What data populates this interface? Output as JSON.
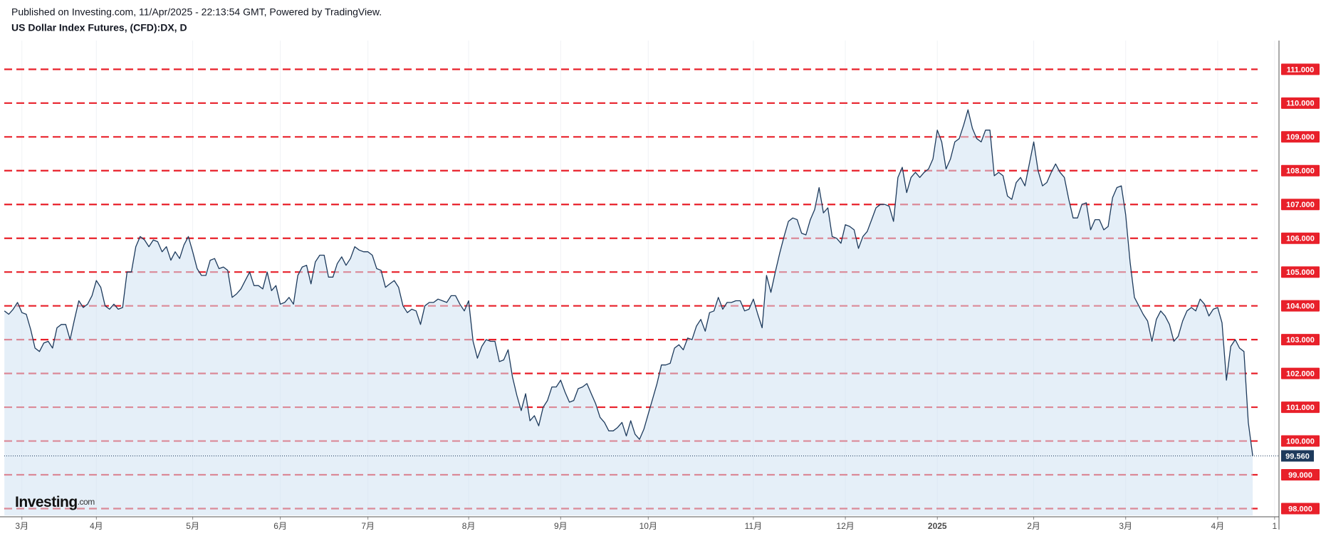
{
  "header": {
    "published": "Published on Investing.com, 11/Apr/2025 - 22:13:54 GMT, Powered by TradingView."
  },
  "chart_data": {
    "type": "area",
    "title": "US Dollar Index Futures, (CFD):DX, D",
    "color": "#1d3a5c",
    "fill": "#cfe1f3",
    "grid_color": "#e8202a",
    "values": [
      103.85,
      103.75,
      103.9,
      104.1,
      103.8,
      103.75,
      103.3,
      102.75,
      102.65,
      102.9,
      102.95,
      102.75,
      103.35,
      103.45,
      103.45,
      103.0,
      103.6,
      104.15,
      103.95,
      104.05,
      104.3,
      104.75,
      104.55,
      104.0,
      103.9,
      104.05,
      103.9,
      103.95,
      105.0,
      105.0,
      105.75,
      106.05,
      105.95,
      105.75,
      105.95,
      105.9,
      105.6,
      105.75,
      105.35,
      105.6,
      105.4,
      105.8,
      106.05,
      105.6,
      105.1,
      104.9,
      104.9,
      105.35,
      105.4,
      105.1,
      105.15,
      105.05,
      104.25,
      104.35,
      104.5,
      104.75,
      105.0,
      104.6,
      104.6,
      104.5,
      105.0,
      104.45,
      104.6,
      104.05,
      104.1,
      104.25,
      104.05,
      104.9,
      105.15,
      105.2,
      104.65,
      105.3,
      105.5,
      105.5,
      104.85,
      104.85,
      105.25,
      105.45,
      105.2,
      105.4,
      105.75,
      105.65,
      105.6,
      105.6,
      105.5,
      105.1,
      105.05,
      104.55,
      104.65,
      104.75,
      104.55,
      104.0,
      103.8,
      103.9,
      103.85,
      103.45,
      104.0,
      104.1,
      104.1,
      104.2,
      104.15,
      104.1,
      104.3,
      104.3,
      104.05,
      103.85,
      104.15,
      102.95,
      102.45,
      102.8,
      103.0,
      102.95,
      102.95,
      102.35,
      102.4,
      102.7,
      101.9,
      101.35,
      100.9,
      101.4,
      100.6,
      100.75,
      100.45,
      101.0,
      101.2,
      101.6,
      101.6,
      101.8,
      101.45,
      101.15,
      101.2,
      101.55,
      101.6,
      101.7,
      101.4,
      101.1,
      100.7,
      100.55,
      100.3,
      100.3,
      100.4,
      100.55,
      100.15,
      100.6,
      100.2,
      100.05,
      100.35,
      100.8,
      101.25,
      101.7,
      102.25,
      102.25,
      102.3,
      102.75,
      102.85,
      102.7,
      103.05,
      103.0,
      103.4,
      103.6,
      103.25,
      103.8,
      103.85,
      104.25,
      103.9,
      104.1,
      104.1,
      104.15,
      104.15,
      103.85,
      103.9,
      104.2,
      103.75,
      103.35,
      104.9,
      104.4,
      105.0,
      105.55,
      106.05,
      106.5,
      106.6,
      106.55,
      106.15,
      106.1,
      106.55,
      106.85,
      107.5,
      106.75,
      106.9,
      106.05,
      106.0,
      105.85,
      106.4,
      106.35,
      106.25,
      105.7,
      106.05,
      106.2,
      106.55,
      106.9,
      107.0,
      107.0,
      106.95,
      106.5,
      107.8,
      108.1,
      107.35,
      107.8,
      107.95,
      107.8,
      107.95,
      108.05,
      108.35,
      109.2,
      108.85,
      108.05,
      108.35,
      108.85,
      108.95,
      109.35,
      109.8,
      109.25,
      108.95,
      108.85,
      109.2,
      109.2,
      107.85,
      107.95,
      107.85,
      107.25,
      107.15,
      107.65,
      107.8,
      107.55,
      108.2,
      108.85,
      108.0,
      107.55,
      107.65,
      107.95,
      108.2,
      107.95,
      107.8,
      107.15,
      106.6,
      106.6,
      107.0,
      107.05,
      106.25,
      106.55,
      106.55,
      106.25,
      106.35,
      107.2,
      107.5,
      107.55,
      106.7,
      105.3,
      104.25,
      104.0,
      103.75,
      103.55,
      102.95,
      103.6,
      103.85,
      103.7,
      103.45,
      102.95,
      103.1,
      103.55,
      103.85,
      103.95,
      103.85,
      104.2,
      104.05,
      103.7,
      103.9,
      103.95,
      103.5,
      101.8,
      102.8,
      103.0,
      102.75,
      102.65,
      100.55,
      99.56
    ],
    "xlim": [
      -1,
      291
    ],
    "xticks": [
      {
        "value": 4,
        "label": "3月"
      },
      {
        "value": 21,
        "label": "4月"
      },
      {
        "value": 43,
        "label": "5月"
      },
      {
        "value": 63,
        "label": "6月"
      },
      {
        "value": 83,
        "label": "7月"
      },
      {
        "value": 106,
        "label": "8月"
      },
      {
        "value": 127,
        "label": "9月"
      },
      {
        "value": 147,
        "label": "10月"
      },
      {
        "value": 171,
        "label": "11月"
      },
      {
        "value": 192,
        "label": "12月"
      },
      {
        "value": 213,
        "label": "2025"
      },
      {
        "value": 235,
        "label": "2月"
      },
      {
        "value": 256,
        "label": "3月"
      },
      {
        "value": 277,
        "label": "4月"
      },
      {
        "value": 290,
        "label": "1"
      }
    ],
    "ylim": [
      97.8,
      111.85
    ],
    "yticks": [
      {
        "value": 111,
        "label": "111.000"
      },
      {
        "value": 110,
        "label": "110.000"
      },
      {
        "value": 109,
        "label": "109.000"
      },
      {
        "value": 108,
        "label": "108.000"
      },
      {
        "value": 107,
        "label": "107.000"
      },
      {
        "value": 106,
        "label": "106.000"
      },
      {
        "value": 105,
        "label": "105.000"
      },
      {
        "value": 104,
        "label": "104.000"
      },
      {
        "value": 103,
        "label": "103.000"
      },
      {
        "value": 102,
        "label": "102.000"
      },
      {
        "value": 101,
        "label": "101.000"
      },
      {
        "value": 100,
        "label": "100.000"
      },
      {
        "value": 99,
        "label": "99.000"
      },
      {
        "value": 98,
        "label": "98.000"
      }
    ],
    "grid": true,
    "last_price": {
      "value": 99.56,
      "label": "99.560"
    }
  },
  "watermark": {
    "brand": "Investing",
    "suffix": ".com"
  }
}
